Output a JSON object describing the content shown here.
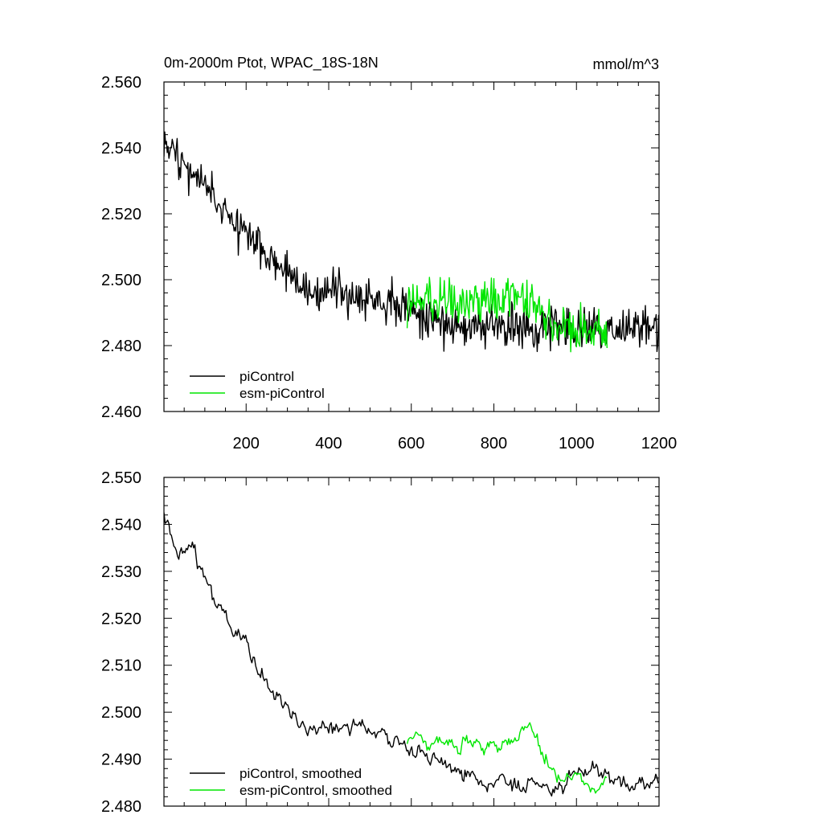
{
  "figure": {
    "title_left": "0m-2000m Ptot, WPAC_18S-18N",
    "title_right": "mmol/m^3"
  },
  "colors": {
    "piControl": "#000000",
    "esm_piControl": "#00e600"
  },
  "chart_data": [
    {
      "type": "line",
      "title": "0m-2000m Ptot, WPAC_18S-18N",
      "xlim": [
        1,
        1200
      ],
      "ylim": [
        2.46,
        2.56
      ],
      "x_ticks": [
        "200",
        "400",
        "600",
        "800",
        "1000",
        "1200"
      ],
      "y_ticks": [
        "2.460",
        "2.480",
        "2.500",
        "2.520",
        "2.540",
        "2.560"
      ],
      "legend_position": "bottom-left",
      "series": [
        {
          "name": "piControl",
          "color": "#000000",
          "x_range": [
            1,
            1200
          ],
          "values": [
            2.544,
            2.537,
            2.534,
            2.532,
            2.528,
            2.524,
            2.52,
            2.517,
            2.514,
            2.511,
            2.507,
            2.504,
            2.501,
            2.499,
            2.497,
            2.496,
            2.496,
            2.496,
            2.496,
            2.496,
            2.495,
            2.494,
            2.493,
            2.492,
            2.491,
            2.489,
            2.488,
            2.487,
            2.487,
            2.486,
            2.486,
            2.486,
            2.486,
            2.486,
            2.485,
            2.485,
            2.485,
            2.486,
            2.486,
            2.485,
            2.485,
            2.485,
            2.486,
            2.485,
            2.485,
            2.485,
            2.485,
            2.486,
            2.486
          ]
        },
        {
          "name": "esm-piControl",
          "color": "#00e600",
          "x_range": [
            590,
            1075
          ],
          "values": [
            2.493,
            2.494,
            2.493,
            2.494,
            2.494,
            2.493,
            2.493,
            2.494,
            2.494,
            2.493,
            2.494,
            2.495,
            2.494,
            2.491,
            2.489,
            2.487,
            2.486,
            2.486,
            2.485,
            2.485,
            2.484
          ]
        }
      ]
    },
    {
      "type": "line",
      "xlim": [
        1,
        1200
      ],
      "ylim": [
        2.48,
        2.55
      ],
      "y_ticks": [
        "2.480",
        "2.490",
        "2.500",
        "2.510",
        "2.520",
        "2.530",
        "2.540",
        "2.550"
      ],
      "legend_position": "bottom-left",
      "series": [
        {
          "name": "piControl, smoothed",
          "color": "#000000",
          "x_range": [
            1,
            1200
          ],
          "values": [
            2.542,
            2.536,
            2.535,
            2.533,
            2.529,
            2.524,
            2.52,
            2.517,
            2.514,
            2.51,
            2.507,
            2.504,
            2.501,
            2.498,
            2.496,
            2.496,
            2.497,
            2.497,
            2.497,
            2.497,
            2.496,
            2.495,
            2.494,
            2.493,
            2.492,
            2.491,
            2.49,
            2.489,
            2.488,
            2.487,
            2.486,
            2.485,
            2.485,
            2.485,
            2.484,
            2.484,
            2.484,
            2.484,
            2.484,
            2.485,
            2.487,
            2.488,
            2.487,
            2.486,
            2.485,
            2.485,
            2.485,
            2.485,
            2.486
          ]
        },
        {
          "name": "esm-piControl, smoothed",
          "color": "#00e600",
          "x_range": [
            590,
            1075
          ],
          "values": [
            2.493,
            2.494,
            2.493,
            2.493,
            2.493,
            2.493,
            2.493,
            2.493,
            2.493,
            2.493,
            2.494,
            2.495,
            2.496,
            2.494,
            2.489,
            2.486,
            2.485,
            2.487,
            2.484,
            2.483,
            2.486
          ]
        }
      ]
    }
  ]
}
